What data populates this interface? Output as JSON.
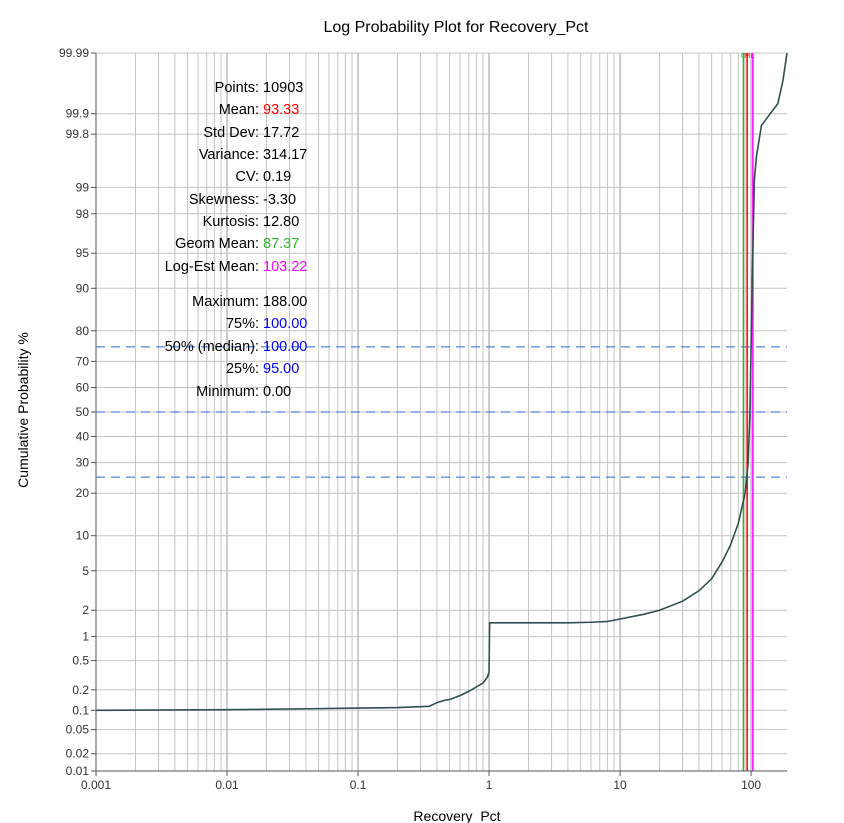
{
  "chart_data": {
    "type": "line",
    "title": "Log Probability Plot for Recovery_Pct",
    "xlabel": "Recovery_Pct",
    "ylabel": "Cumulative Probability %",
    "x_scale": "log",
    "y_scale": "probability",
    "xlim": [
      0.001,
      188
    ],
    "ylim": [
      0.01,
      99.99
    ],
    "x_ticks": [
      {
        "value": 0.001,
        "label": "0.001"
      },
      {
        "value": 0.01,
        "label": "0.01"
      },
      {
        "value": 0.1,
        "label": "0.1"
      },
      {
        "value": 1,
        "label": "1"
      },
      {
        "value": 10,
        "label": "10"
      },
      {
        "value": 100,
        "label": "100"
      }
    ],
    "y_ticks": [
      {
        "value": 0.01,
        "label": "0.01"
      },
      {
        "value": 0.02,
        "label": "0.02"
      },
      {
        "value": 0.05,
        "label": "0.05"
      },
      {
        "value": 0.1,
        "label": "0.1"
      },
      {
        "value": 0.2,
        "label": "0.2"
      },
      {
        "value": 0.5,
        "label": "0.5"
      },
      {
        "value": 1,
        "label": "1"
      },
      {
        "value": 2,
        "label": "2"
      },
      {
        "value": 5,
        "label": "5"
      },
      {
        "value": 10,
        "label": "10"
      },
      {
        "value": 20,
        "label": "20"
      },
      {
        "value": 30,
        "label": "30"
      },
      {
        "value": 40,
        "label": "40"
      },
      {
        "value": 50,
        "label": "50"
      },
      {
        "value": 60,
        "label": "60"
      },
      {
        "value": 70,
        "label": "70"
      },
      {
        "value": 80,
        "label": "80"
      },
      {
        "value": 90,
        "label": "90"
      },
      {
        "value": 95,
        "label": "95"
      },
      {
        "value": 98,
        "label": "98"
      },
      {
        "value": 99,
        "label": "99"
      },
      {
        "value": 99.8,
        "label": "99.8"
      },
      {
        "value": 99.9,
        "label": "99.9"
      },
      {
        "value": 99.99,
        "label": "99.99"
      }
    ],
    "grid": true,
    "series": [
      {
        "color": "#2f4f4f",
        "points": [
          [
            0.001,
            0.1
          ],
          [
            0.01,
            0.102
          ],
          [
            0.05,
            0.106
          ],
          [
            0.1,
            0.108
          ],
          [
            0.2,
            0.11
          ],
          [
            0.35,
            0.115
          ],
          [
            0.4,
            0.13
          ],
          [
            0.45,
            0.14
          ],
          [
            0.5,
            0.145
          ],
          [
            0.6,
            0.165
          ],
          [
            0.7,
            0.19
          ],
          [
            0.8,
            0.22
          ],
          [
            0.9,
            0.25
          ],
          [
            0.97,
            0.3
          ],
          [
            1.0,
            0.35
          ],
          [
            1.01,
            1.45
          ],
          [
            2,
            1.45
          ],
          [
            4,
            1.45
          ],
          [
            6,
            1.47
          ],
          [
            8,
            1.5
          ],
          [
            10,
            1.6
          ],
          [
            15,
            1.8
          ],
          [
            20,
            2.0
          ],
          [
            30,
            2.5
          ],
          [
            40,
            3.2
          ],
          [
            50,
            4.2
          ],
          [
            60,
            6
          ],
          [
            70,
            8.5
          ],
          [
            80,
            12.5
          ],
          [
            90,
            20
          ],
          [
            95,
            30
          ],
          [
            98,
            50
          ],
          [
            100,
            75
          ],
          [
            103,
            95
          ],
          [
            106,
            99.2
          ],
          [
            110,
            99.6
          ],
          [
            120,
            99.85
          ],
          [
            140,
            99.9
          ],
          [
            160,
            99.93
          ],
          [
            175,
            99.97
          ],
          [
            188,
            99.99
          ]
        ]
      }
    ],
    "reference_lines": {
      "horizontal_dashed": [
        25,
        50,
        75
      ],
      "vertical": [
        {
          "x": 87.37,
          "color": "#2db52d",
          "label": "G"
        },
        {
          "x": 93.33,
          "color": "#ff0000",
          "label": "M"
        },
        {
          "x": 103.22,
          "color": "#ff00ff",
          "label": "L"
        }
      ]
    },
    "stats": [
      {
        "label": "Points:",
        "value": "10903",
        "color": "#000000"
      },
      {
        "label": "Mean:",
        "value": "93.33",
        "color": "#ff0000"
      },
      {
        "label": "Std Dev:",
        "value": "17.72",
        "color": "#000000"
      },
      {
        "label": "Variance:",
        "value": "314.17",
        "color": "#000000"
      },
      {
        "label": "CV:",
        "value": "0.19",
        "color": "#000000"
      },
      {
        "label": "Skewness:",
        "value": "-3.30",
        "color": "#000000"
      },
      {
        "label": "Kurtosis:",
        "value": "12.80",
        "color": "#000000"
      },
      {
        "label": "Geom Mean:",
        "value": "87.37",
        "color": "#2db52d"
      },
      {
        "label": "Log-Est Mean:",
        "value": "103.22",
        "color": "#ff00ff"
      },
      {
        "label": "Maximum:",
        "value": "188.00",
        "color": "#000000"
      },
      {
        "label": "75%:",
        "value": "100.00",
        "color": "#0000ff"
      },
      {
        "label": "50% (median):",
        "value": "100.00",
        "color": "#0000ff"
      },
      {
        "label": "25%:",
        "value": "95.00",
        "color": "#0000ff"
      },
      {
        "label": "Minimum:",
        "value": "0.00",
        "color": "#000000"
      }
    ]
  }
}
